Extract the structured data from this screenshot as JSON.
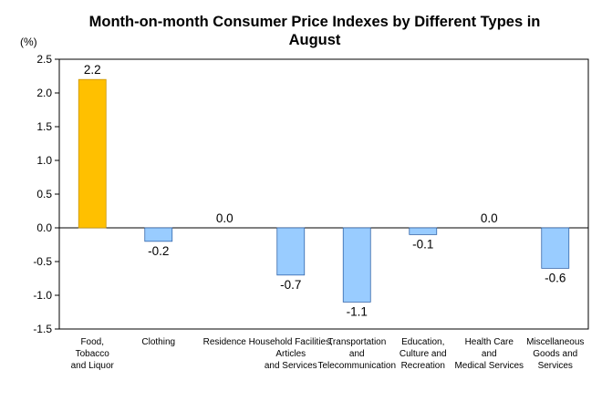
{
  "chart_data": {
    "type": "bar",
    "title_lines": [
      "Month-on-month Consumer Price Indexes by Different Types in",
      "August"
    ],
    "unit_label": "(%)",
    "xlabel": "",
    "ylabel": "",
    "ylim": [
      -1.5,
      2.5
    ],
    "yticks": [
      "2.5",
      "2.0",
      "1.5",
      "1.0",
      "0.5",
      "0.0",
      "-0.5",
      "-1.0",
      "-1.5"
    ],
    "grid": false,
    "categories": [
      [
        "Food,",
        "Tobacco",
        "and Liquor"
      ],
      [
        "Clothing"
      ],
      [
        "Residence"
      ],
      [
        "Household Facilities,",
        "Articles",
        "and Services"
      ],
      [
        "Transportation",
        "and",
        "Telecommunication"
      ],
      [
        "Education,",
        "Culture and",
        "Recreation"
      ],
      [
        "Health Care",
        "and",
        "Medical Services"
      ],
      [
        "Miscellaneous",
        "Goods and",
        "Services"
      ]
    ],
    "values": [
      2.2,
      -0.2,
      0.0,
      -0.7,
      -1.1,
      -0.1,
      0.0,
      -0.6
    ],
    "value_labels": [
      "2.2",
      "-0.2",
      "0.0",
      "-0.7",
      "-1.1",
      "-0.1",
      "0.0",
      "-0.6"
    ],
    "colors": {
      "highlight": "#FFC000",
      "highlight_border": "#C8960A",
      "default": "#99CCFF",
      "default_border": "#3366AA",
      "axis": "#000000"
    },
    "highlight_index": 0
  }
}
